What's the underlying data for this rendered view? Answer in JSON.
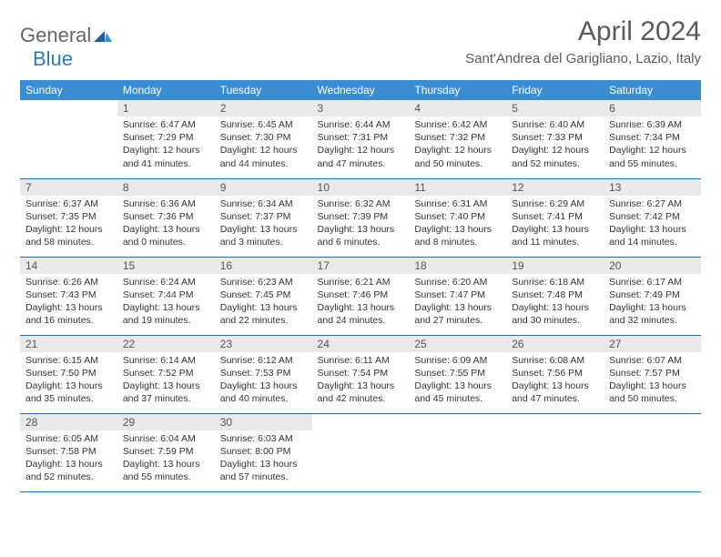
{
  "brand": {
    "general": "General",
    "blue": "Blue"
  },
  "title": "April 2024",
  "location": "Sant'Andrea del Garigliano, Lazio, Italy",
  "colors": {
    "header_bg": "#3a8dd0",
    "header_text": "#ffffff",
    "daynum_bg": "#e9e9e9",
    "row_border": "#2a6ca8",
    "text": "#333333",
    "title_text": "#5a5a5a",
    "logo_blue": "#2a7bbf"
  },
  "weekdays": [
    "Sunday",
    "Monday",
    "Tuesday",
    "Wednesday",
    "Thursday",
    "Friday",
    "Saturday"
  ],
  "cells": [
    {
      "n": "",
      "sr": "",
      "ss": "",
      "dl": ""
    },
    {
      "n": "1",
      "sr": "Sunrise: 6:47 AM",
      "ss": "Sunset: 7:29 PM",
      "dl": "Daylight: 12 hours and 41 minutes."
    },
    {
      "n": "2",
      "sr": "Sunrise: 6:45 AM",
      "ss": "Sunset: 7:30 PM",
      "dl": "Daylight: 12 hours and 44 minutes."
    },
    {
      "n": "3",
      "sr": "Sunrise: 6:44 AM",
      "ss": "Sunset: 7:31 PM",
      "dl": "Daylight: 12 hours and 47 minutes."
    },
    {
      "n": "4",
      "sr": "Sunrise: 6:42 AM",
      "ss": "Sunset: 7:32 PM",
      "dl": "Daylight: 12 hours and 50 minutes."
    },
    {
      "n": "5",
      "sr": "Sunrise: 6:40 AM",
      "ss": "Sunset: 7:33 PM",
      "dl": "Daylight: 12 hours and 52 minutes."
    },
    {
      "n": "6",
      "sr": "Sunrise: 6:39 AM",
      "ss": "Sunset: 7:34 PM",
      "dl": "Daylight: 12 hours and 55 minutes."
    },
    {
      "n": "7",
      "sr": "Sunrise: 6:37 AM",
      "ss": "Sunset: 7:35 PM",
      "dl": "Daylight: 12 hours and 58 minutes."
    },
    {
      "n": "8",
      "sr": "Sunrise: 6:36 AM",
      "ss": "Sunset: 7:36 PM",
      "dl": "Daylight: 13 hours and 0 minutes."
    },
    {
      "n": "9",
      "sr": "Sunrise: 6:34 AM",
      "ss": "Sunset: 7:37 PM",
      "dl": "Daylight: 13 hours and 3 minutes."
    },
    {
      "n": "10",
      "sr": "Sunrise: 6:32 AM",
      "ss": "Sunset: 7:39 PM",
      "dl": "Daylight: 13 hours and 6 minutes."
    },
    {
      "n": "11",
      "sr": "Sunrise: 6:31 AM",
      "ss": "Sunset: 7:40 PM",
      "dl": "Daylight: 13 hours and 8 minutes."
    },
    {
      "n": "12",
      "sr": "Sunrise: 6:29 AM",
      "ss": "Sunset: 7:41 PM",
      "dl": "Daylight: 13 hours and 11 minutes."
    },
    {
      "n": "13",
      "sr": "Sunrise: 6:27 AM",
      "ss": "Sunset: 7:42 PM",
      "dl": "Daylight: 13 hours and 14 minutes."
    },
    {
      "n": "14",
      "sr": "Sunrise: 6:26 AM",
      "ss": "Sunset: 7:43 PM",
      "dl": "Daylight: 13 hours and 16 minutes."
    },
    {
      "n": "15",
      "sr": "Sunrise: 6:24 AM",
      "ss": "Sunset: 7:44 PM",
      "dl": "Daylight: 13 hours and 19 minutes."
    },
    {
      "n": "16",
      "sr": "Sunrise: 6:23 AM",
      "ss": "Sunset: 7:45 PM",
      "dl": "Daylight: 13 hours and 22 minutes."
    },
    {
      "n": "17",
      "sr": "Sunrise: 6:21 AM",
      "ss": "Sunset: 7:46 PM",
      "dl": "Daylight: 13 hours and 24 minutes."
    },
    {
      "n": "18",
      "sr": "Sunrise: 6:20 AM",
      "ss": "Sunset: 7:47 PM",
      "dl": "Daylight: 13 hours and 27 minutes."
    },
    {
      "n": "19",
      "sr": "Sunrise: 6:18 AM",
      "ss": "Sunset: 7:48 PM",
      "dl": "Daylight: 13 hours and 30 minutes."
    },
    {
      "n": "20",
      "sr": "Sunrise: 6:17 AM",
      "ss": "Sunset: 7:49 PM",
      "dl": "Daylight: 13 hours and 32 minutes."
    },
    {
      "n": "21",
      "sr": "Sunrise: 6:15 AM",
      "ss": "Sunset: 7:50 PM",
      "dl": "Daylight: 13 hours and 35 minutes."
    },
    {
      "n": "22",
      "sr": "Sunrise: 6:14 AM",
      "ss": "Sunset: 7:52 PM",
      "dl": "Daylight: 13 hours and 37 minutes."
    },
    {
      "n": "23",
      "sr": "Sunrise: 6:12 AM",
      "ss": "Sunset: 7:53 PM",
      "dl": "Daylight: 13 hours and 40 minutes."
    },
    {
      "n": "24",
      "sr": "Sunrise: 6:11 AM",
      "ss": "Sunset: 7:54 PM",
      "dl": "Daylight: 13 hours and 42 minutes."
    },
    {
      "n": "25",
      "sr": "Sunrise: 6:09 AM",
      "ss": "Sunset: 7:55 PM",
      "dl": "Daylight: 13 hours and 45 minutes."
    },
    {
      "n": "26",
      "sr": "Sunrise: 6:08 AM",
      "ss": "Sunset: 7:56 PM",
      "dl": "Daylight: 13 hours and 47 minutes."
    },
    {
      "n": "27",
      "sr": "Sunrise: 6:07 AM",
      "ss": "Sunset: 7:57 PM",
      "dl": "Daylight: 13 hours and 50 minutes."
    },
    {
      "n": "28",
      "sr": "Sunrise: 6:05 AM",
      "ss": "Sunset: 7:58 PM",
      "dl": "Daylight: 13 hours and 52 minutes."
    },
    {
      "n": "29",
      "sr": "Sunrise: 6:04 AM",
      "ss": "Sunset: 7:59 PM",
      "dl": "Daylight: 13 hours and 55 minutes."
    },
    {
      "n": "30",
      "sr": "Sunrise: 6:03 AM",
      "ss": "Sunset: 8:00 PM",
      "dl": "Daylight: 13 hours and 57 minutes."
    },
    {
      "n": "",
      "sr": "",
      "ss": "",
      "dl": ""
    },
    {
      "n": "",
      "sr": "",
      "ss": "",
      "dl": ""
    },
    {
      "n": "",
      "sr": "",
      "ss": "",
      "dl": ""
    },
    {
      "n": "",
      "sr": "",
      "ss": "",
      "dl": ""
    }
  ]
}
